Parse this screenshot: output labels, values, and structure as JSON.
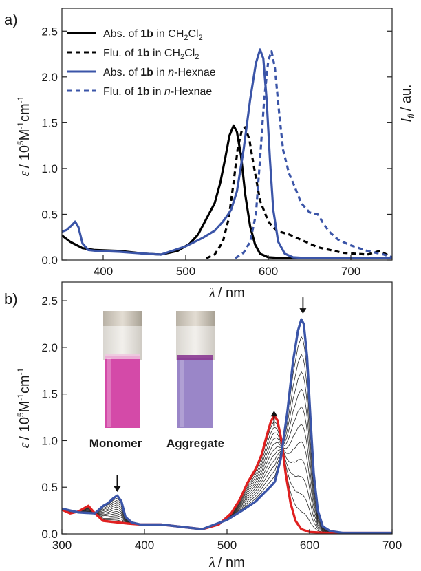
{
  "chart_data": [
    {
      "type": "line",
      "panel_label": "a)",
      "xlabel_symbol": "λ",
      "xlabel_unit": "/ nm",
      "ylabel_symbol": "ε",
      "ylabel_unit": "/ 10",
      "ylabel_exp": "5",
      "ylabel_tail": "M",
      "ylabel_exp2": "-1",
      "ylabel_tail2": "cm",
      "ylabel_exp3": "-1",
      "y2label_symbol": "I",
      "y2label_sub": "fl",
      "y2label_unit": "/ au.",
      "xlim": [
        350,
        750
      ],
      "ylim": [
        0,
        2.75
      ],
      "xticks": [
        "400",
        "500",
        "600",
        "700"
      ],
      "yticks": [
        "0.0",
        "0.5",
        "1.0",
        "1.5",
        "2.0",
        "2.5"
      ],
      "legend_position": "top-left",
      "series": [
        {
          "name": "Abs. of 1b in CH2Cl2",
          "legend": {
            "pre": "Abs.  of ",
            "bold": "1b",
            "mid": " in CH",
            "sub1": "2",
            "mid2": "Cl",
            "sub2": "2"
          },
          "color": "#000000",
          "style": "solid",
          "x": [
            350,
            360,
            375,
            390,
            420,
            450,
            470,
            490,
            505,
            515,
            525,
            535,
            542,
            548,
            553,
            558,
            562,
            567,
            572,
            578,
            584,
            590,
            600,
            620,
            700,
            750
          ],
          "y": [
            0.27,
            0.2,
            0.13,
            0.11,
            0.1,
            0.07,
            0.06,
            0.1,
            0.18,
            0.28,
            0.45,
            0.62,
            0.85,
            1.12,
            1.36,
            1.47,
            1.4,
            1.14,
            0.72,
            0.37,
            0.17,
            0.07,
            0.03,
            0.02,
            0.02,
            0.02
          ]
        },
        {
          "name": "Flu. of 1b in CH2Cl2",
          "legend": {
            "pre": "Flu.   of ",
            "bold": "1b",
            "mid": " in CH",
            "sub1": "2",
            "mid2": "Cl",
            "sub2": "2"
          },
          "color": "#000000",
          "style": "dashed",
          "x": [
            525,
            535,
            545,
            552,
            558,
            563,
            568,
            572,
            577,
            582,
            590,
            600,
            610,
            625,
            640,
            660,
            690,
            720,
            735,
            750
          ],
          "y": [
            0.02,
            0.06,
            0.2,
            0.45,
            0.85,
            1.22,
            1.42,
            1.45,
            1.32,
            1.05,
            0.65,
            0.42,
            0.32,
            0.28,
            0.22,
            0.14,
            0.08,
            0.06,
            0.1,
            0.03
          ]
        },
        {
          "name": "Abs. of 1b in n-Hexnae",
          "legend": {
            "pre": "Abs.  of ",
            "bold": "1b",
            "mid": " in ",
            "ital": "n",
            "post": "-Hexnae"
          },
          "color": "#3b55a8",
          "style": "solid",
          "x": [
            350,
            356,
            362,
            366,
            370,
            375,
            382,
            392,
            420,
            450,
            470,
            500,
            520,
            535,
            545,
            550,
            555,
            562,
            570,
            578,
            585,
            590,
            594,
            598,
            602,
            606,
            612,
            620,
            630,
            650,
            700,
            750
          ],
          "y": [
            0.31,
            0.33,
            0.38,
            0.42,
            0.36,
            0.18,
            0.11,
            0.1,
            0.09,
            0.07,
            0.06,
            0.15,
            0.24,
            0.32,
            0.42,
            0.48,
            0.55,
            0.75,
            1.2,
            1.75,
            2.15,
            2.3,
            2.2,
            1.75,
            1.1,
            0.55,
            0.2,
            0.07,
            0.03,
            0.02,
            0.02,
            0.02
          ]
        },
        {
          "name": "Flu. of 1b in n-Hexnae",
          "legend": {
            "pre": "Flu.   of ",
            "bold": "1b",
            "mid": " in ",
            "ital": "n",
            "post": "-Hexnae"
          },
          "color": "#3b55a8",
          "style": "dashed",
          "x": [
            560,
            570,
            578,
            585,
            590,
            595,
            600,
            604,
            608,
            613,
            618,
            625,
            632,
            640,
            650,
            660,
            668,
            675,
            685,
            700,
            720,
            740,
            750
          ],
          "y": [
            0.02,
            0.08,
            0.2,
            0.5,
            1.1,
            1.75,
            2.18,
            2.28,
            2.1,
            1.62,
            1.2,
            0.95,
            0.8,
            0.62,
            0.52,
            0.5,
            0.38,
            0.3,
            0.22,
            0.16,
            0.1,
            0.06,
            0.03
          ]
        }
      ]
    },
    {
      "type": "line",
      "panel_label": "b)",
      "xlabel_symbol": "λ",
      "xlabel_unit": "/ nm",
      "ylabel_symbol": "ε",
      "ylabel_unit": "/ 10",
      "ylabel_exp": "5",
      "ylabel_tail": "M",
      "ylabel_exp2": "-1",
      "ylabel_tail2": "cm",
      "ylabel_exp3": "-1",
      "xlim": [
        300,
        700
      ],
      "ylim": [
        0,
        2.7
      ],
      "xticks": [
        "300",
        "400",
        "500",
        "600",
        "700"
      ],
      "yticks": [
        "0.0",
        "0.5",
        "1.0",
        "1.5",
        "2.0",
        "2.5"
      ],
      "arrows": [
        {
          "x": 367,
          "y": 0.45,
          "direction": "down"
        },
        {
          "x": 557,
          "y": 1.32,
          "direction": "up"
        },
        {
          "x": 592,
          "y": 2.36,
          "direction": "down"
        }
      ],
      "inset": {
        "vials": [
          {
            "label": "Monomer",
            "color": "#d44aa8"
          },
          {
            "label": "Aggregate",
            "color": "#9a86c8"
          }
        ]
      },
      "intermediate_series_count": 11,
      "series": [
        {
          "role": "monomer",
          "color": "#e02020",
          "x": [
            300,
            310,
            320,
            332,
            340,
            350,
            360,
            370,
            380,
            395,
            420,
            450,
            470,
            490,
            505,
            515,
            525,
            535,
            542,
            548,
            553,
            557,
            561,
            566,
            571,
            577,
            583,
            590,
            600,
            620,
            700
          ],
          "y": [
            0.26,
            0.22,
            0.24,
            0.3,
            0.22,
            0.14,
            0.13,
            0.12,
            0.11,
            0.1,
            0.1,
            0.07,
            0.05,
            0.1,
            0.22,
            0.36,
            0.55,
            0.7,
            0.85,
            1.05,
            1.2,
            1.27,
            1.22,
            1.0,
            0.65,
            0.33,
            0.14,
            0.05,
            0.02,
            0.01,
            0.01
          ]
        },
        {
          "role": "aggregate",
          "color": "#3b55a8",
          "x": [
            300,
            320,
            340,
            350,
            356,
            362,
            367,
            372,
            377,
            385,
            395,
            420,
            450,
            470,
            500,
            520,
            535,
            545,
            552,
            558,
            565,
            573,
            580,
            586,
            590,
            593,
            597,
            601,
            605,
            610,
            616,
            625,
            640,
            700
          ],
          "y": [
            0.27,
            0.23,
            0.22,
            0.3,
            0.33,
            0.38,
            0.41,
            0.35,
            0.18,
            0.12,
            0.1,
            0.1,
            0.07,
            0.05,
            0.15,
            0.26,
            0.35,
            0.44,
            0.5,
            0.56,
            0.8,
            1.3,
            1.85,
            2.18,
            2.3,
            2.25,
            1.9,
            1.25,
            0.65,
            0.25,
            0.08,
            0.03,
            0.01,
            0.01
          ]
        }
      ]
    }
  ]
}
